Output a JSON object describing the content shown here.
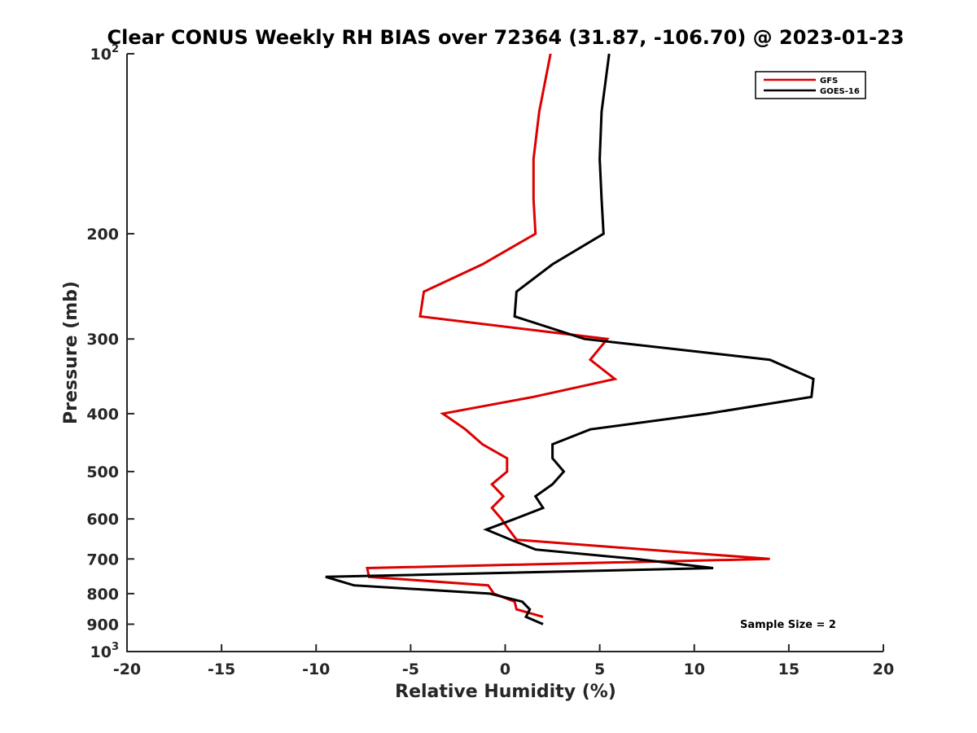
{
  "chart_data": {
    "type": "line",
    "title": "Clear CONUS Weekly RH BIAS over 72364 (31.87, -106.70) @ 2023-01-23",
    "xlabel": "Relative Humidity (%)",
    "ylabel": "Pressure (mb)",
    "xlim": [
      -20,
      20
    ],
    "ylim": [
      100,
      1000
    ],
    "y_scale": "log",
    "y_reversed": true,
    "grid": false,
    "legend_position": "top-right",
    "x_ticks": [
      "-20",
      "-15",
      "-10",
      "-5",
      "0",
      "5",
      "10",
      "15",
      "20"
    ],
    "y_ticks": [
      {
        "value": 100,
        "base": "10",
        "exp": "2"
      },
      {
        "value": 200,
        "label": "200"
      },
      {
        "value": 300,
        "label": "300"
      },
      {
        "value": 400,
        "label": "400"
      },
      {
        "value": 500,
        "label": "500"
      },
      {
        "value": 600,
        "label": "600"
      },
      {
        "value": 700,
        "label": "700"
      },
      {
        "value": 800,
        "label": "800"
      },
      {
        "value": 900,
        "label": "900"
      },
      {
        "value": 1000,
        "base": "10",
        "exp": "3"
      }
    ],
    "series": [
      {
        "name": "GFS",
        "color": "#dd0000",
        "points": [
          [
            2.4,
            100
          ],
          [
            1.8,
            125
          ],
          [
            1.5,
            150
          ],
          [
            1.5,
            175
          ],
          [
            1.6,
            200
          ],
          [
            -1.2,
            225
          ],
          [
            -4.3,
            250
          ],
          [
            -4.5,
            275
          ],
          [
            5.4,
            300
          ],
          [
            4.5,
            325
          ],
          [
            5.8,
            350
          ],
          [
            1.5,
            375
          ],
          [
            -3.3,
            400
          ],
          [
            -2.1,
            425
          ],
          [
            -1.2,
            450
          ],
          [
            0.1,
            475
          ],
          [
            0.1,
            500
          ],
          [
            -0.7,
            525
          ],
          [
            -0.1,
            550
          ],
          [
            -0.7,
            575
          ],
          [
            -0.2,
            600
          ],
          [
            0.2,
            625
          ],
          [
            0.6,
            650
          ],
          [
            14.0,
            700
          ],
          [
            -7.3,
            725
          ],
          [
            -7.2,
            750
          ],
          [
            -0.9,
            775
          ],
          [
            -0.6,
            800
          ],
          [
            0.5,
            825
          ],
          [
            0.6,
            850
          ],
          [
            2.0,
            875
          ]
        ]
      },
      {
        "name": "GOES-16",
        "color": "#000000",
        "points": [
          [
            5.5,
            100
          ],
          [
            5.1,
            125
          ],
          [
            5.0,
            150
          ],
          [
            5.1,
            175
          ],
          [
            5.2,
            200
          ],
          [
            2.5,
            225
          ],
          [
            0.6,
            250
          ],
          [
            0.5,
            275
          ],
          [
            4.2,
            300
          ],
          [
            14.0,
            325
          ],
          [
            16.3,
            350
          ],
          [
            16.2,
            375
          ],
          [
            10.7,
            400
          ],
          [
            4.5,
            425
          ],
          [
            2.5,
            450
          ],
          [
            2.5,
            475
          ],
          [
            3.1,
            500
          ],
          [
            2.5,
            525
          ],
          [
            1.6,
            550
          ],
          [
            2.0,
            575
          ],
          [
            0.5,
            600
          ],
          [
            -1.0,
            625
          ],
          [
            0.3,
            650
          ],
          [
            1.6,
            675
          ],
          [
            6.9,
            700
          ],
          [
            11.0,
            725
          ],
          [
            -9.5,
            750
          ],
          [
            -8.0,
            775
          ],
          [
            -0.8,
            800
          ],
          [
            0.9,
            825
          ],
          [
            1.3,
            850
          ],
          [
            1.1,
            875
          ],
          [
            2.0,
            900
          ]
        ]
      }
    ],
    "annotations": [
      "Sample Size = 2"
    ]
  }
}
